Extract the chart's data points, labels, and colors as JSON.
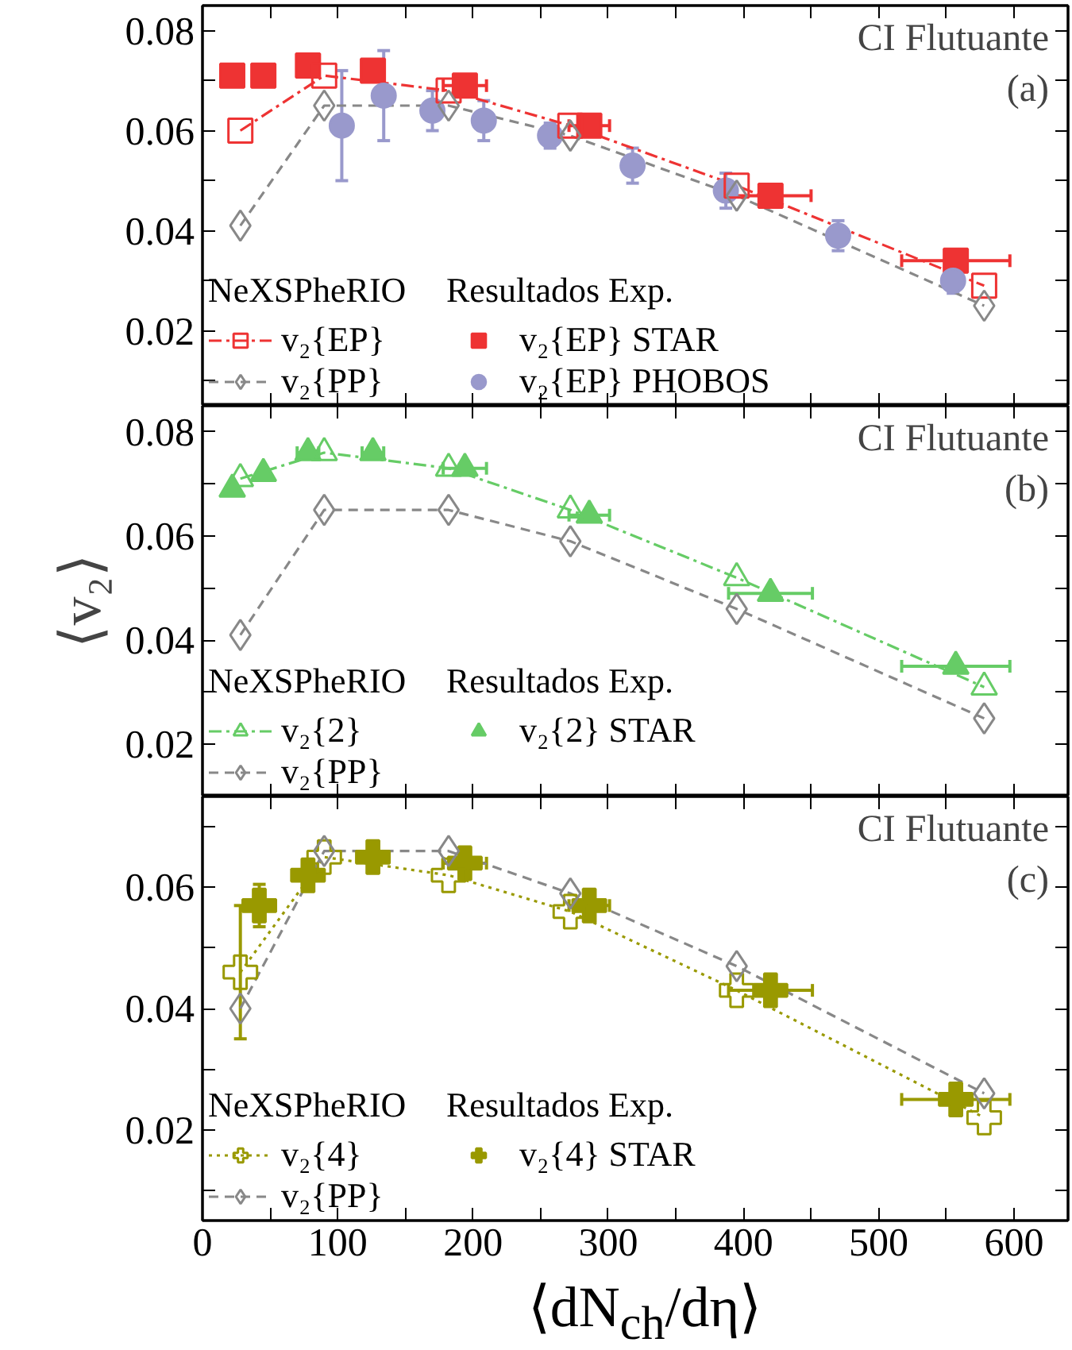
{
  "chart_data": [
    {
      "type": "scatter",
      "xlim": [
        0,
        640
      ],
      "ylim": [
        0.005,
        0.085
      ],
      "tick_labels": "y",
      "legend": "bottom left",
      "xticks": [
        0,
        100,
        200,
        300,
        400,
        500,
        600,
        {
          "value": 50,
          "label": null
        },
        {
          "value": 150,
          "label": null
        },
        {
          "value": 250,
          "label": null
        },
        {
          "value": 350,
          "label": null
        },
        {
          "value": 450,
          "label": null
        },
        {
          "value": 550,
          "label": null
        }
      ],
      "yticks": [
        0.02,
        0.04,
        0.06,
        0.08,
        {
          "value": 0.01,
          "label": null
        },
        {
          "value": 0.03,
          "label": null
        },
        {
          "value": 0.05,
          "label": null
        },
        {
          "value": 0.07,
          "label": null
        }
      ],
      "annotations": [
        "CI Flutuante",
        "(a)",
        "NeXSPheRIO",
        "Resultados Exp."
      ],
      "series": [
        {
          "name": "v₂{EP}",
          "type": "line",
          "marker": "square",
          "line_style": "dashdot",
          "color": "#ee3333",
          "x": [
            28,
            90,
            182,
            272,
            395,
            578
          ],
          "values": [
            0.06,
            0.071,
            0.068,
            0.061,
            0.049,
            0.029
          ]
        },
        {
          "name": "v₂{PP}",
          "type": "line",
          "marker": "diamond",
          "line_style": "dashed",
          "color": "#888888",
          "x": [
            28,
            90,
            182,
            272,
            395,
            578
          ],
          "values": [
            0.041,
            0.065,
            0.065,
            0.059,
            0.047,
            0.025
          ]
        },
        {
          "name": "v₂{EP} STAR",
          "type": "scatter",
          "marker": "square",
          "color": "#ee3333",
          "x": [
            22,
            45,
            78,
            126,
            194,
            286,
            420,
            557
          ],
          "values": [
            0.071,
            0.071,
            0.073,
            0.072,
            0.069,
            0.061,
            0.047,
            0.034
          ],
          "xerrors": [
            null,
            null,
            null,
            8,
            16,
            15,
            30,
            40
          ]
        },
        {
          "name": "v₂{EP} PHOBOS",
          "type": "scatter",
          "marker": "circle",
          "color": "#9999cc",
          "x": [
            103,
            134,
            170,
            208,
            257,
            318,
            387,
            470,
            555
          ],
          "values": [
            0.061,
            0.067,
            0.064,
            0.062,
            0.059,
            0.053,
            0.048,
            0.039,
            0.03
          ],
          "errors": [
            0.011,
            0.009,
            0.004,
            0.004,
            0.0025,
            0.0035,
            0.0035,
            0.003,
            0.0025
          ]
        }
      ]
    },
    {
      "type": "scatter",
      "xlim": [
        0,
        640
      ],
      "ylim": [
        0.01,
        0.085
      ],
      "tick_labels": "y",
      "legend": "bottom left",
      "ylabel": "⟨v₂⟩",
      "xticks": [
        0,
        100,
        200,
        300,
        400,
        500,
        600,
        {
          "value": 50,
          "label": null
        },
        {
          "value": 150,
          "label": null
        },
        {
          "value": 250,
          "label": null
        },
        {
          "value": 350,
          "label": null
        },
        {
          "value": 450,
          "label": null
        },
        {
          "value": 550,
          "label": null
        }
      ],
      "yticks": [
        0.02,
        0.04,
        0.06,
        0.08,
        {
          "value": 0.03,
          "label": null
        },
        {
          "value": 0.05,
          "label": null
        },
        {
          "value": 0.07,
          "label": null
        }
      ],
      "annotations": [
        "CI Flutuante",
        "(b)",
        "NeXSPheRIO",
        "Resultados Exp."
      ],
      "series": [
        {
          "name": "v₂{2}",
          "type": "line",
          "marker": "triangle",
          "line_style": "dashdot",
          "color": "#66cc66",
          "x": [
            28,
            90,
            182,
            272,
            395,
            578
          ],
          "values": [
            0.071,
            0.076,
            0.073,
            0.065,
            0.052,
            0.031
          ]
        },
        {
          "name": "v₂{PP}",
          "type": "line",
          "marker": "diamond",
          "line_style": "dashed",
          "color": "#888888",
          "x": [
            28,
            90,
            182,
            272,
            395,
            578
          ],
          "values": [
            0.041,
            0.065,
            0.065,
            0.059,
            0.046,
            0.025
          ]
        },
        {
          "name": "v₂{2} STAR",
          "type": "scatter",
          "marker": "triangle",
          "color": "#66cc66",
          "x": [
            22,
            45,
            78,
            126,
            194,
            286,
            420,
            557
          ],
          "values": [
            0.069,
            0.072,
            0.076,
            0.076,
            0.073,
            0.064,
            0.049,
            0.035
          ],
          "xerrors": [
            null,
            null,
            8,
            8,
            16,
            15,
            31,
            40
          ]
        }
      ]
    },
    {
      "type": "scatter",
      "xlim": [
        0,
        640
      ],
      "ylim": [
        0.005,
        0.075
      ],
      "legend": "bottom left",
      "xlabel": "⟨dN$_{ch}$/dη⟩",
      "xticks": [
        0,
        100,
        200,
        300,
        400,
        500,
        600,
        {
          "value": 50,
          "label": null
        },
        {
          "value": 150,
          "label": null
        },
        {
          "value": 250,
          "label": null
        },
        {
          "value": 350,
          "label": null
        },
        {
          "value": 450,
          "label": null
        },
        {
          "value": 550,
          "label": null
        }
      ],
      "yticks": [
        0.02,
        0.04,
        0.06,
        {
          "value": 0.01,
          "label": null
        },
        {
          "value": 0.03,
          "label": null
        },
        {
          "value": 0.05,
          "label": null
        },
        {
          "value": 0.07,
          "label": null
        }
      ],
      "annotations": [
        "CI Flutuante",
        "(c)",
        "NeXSPheRIO",
        "Resultados Exp."
      ],
      "series": [
        {
          "name": "v₂{4}",
          "type": "line",
          "marker": "cross",
          "line_style": "dotted",
          "color": "#999900",
          "x": [
            28,
            90,
            182,
            272,
            395,
            578
          ],
          "values": [
            0.046,
            0.065,
            0.062,
            0.056,
            0.043,
            0.022
          ],
          "errors": [
            0.011,
            null,
            null,
            null,
            null,
            null
          ]
        },
        {
          "name": "v₂{PP}",
          "type": "line",
          "marker": "diamond",
          "line_style": "dashed",
          "color": "#888888",
          "x": [
            28,
            90,
            182,
            272,
            395,
            578
          ],
          "values": [
            0.04,
            0.066,
            0.066,
            0.059,
            0.047,
            0.026
          ]
        },
        {
          "name": "v₂{4} STAR",
          "type": "scatter",
          "marker": "cross",
          "color": "#999900",
          "x": [
            42,
            78,
            126,
            194,
            286,
            420,
            557
          ],
          "values": [
            0.057,
            0.062,
            0.065,
            0.064,
            0.057,
            0.043,
            0.025
          ],
          "errors": [
            0.0035,
            null,
            null,
            null,
            null,
            null,
            null
          ],
          "xerrors": [
            null,
            null,
            null,
            16,
            15,
            31,
            40
          ]
        }
      ]
    }
  ]
}
